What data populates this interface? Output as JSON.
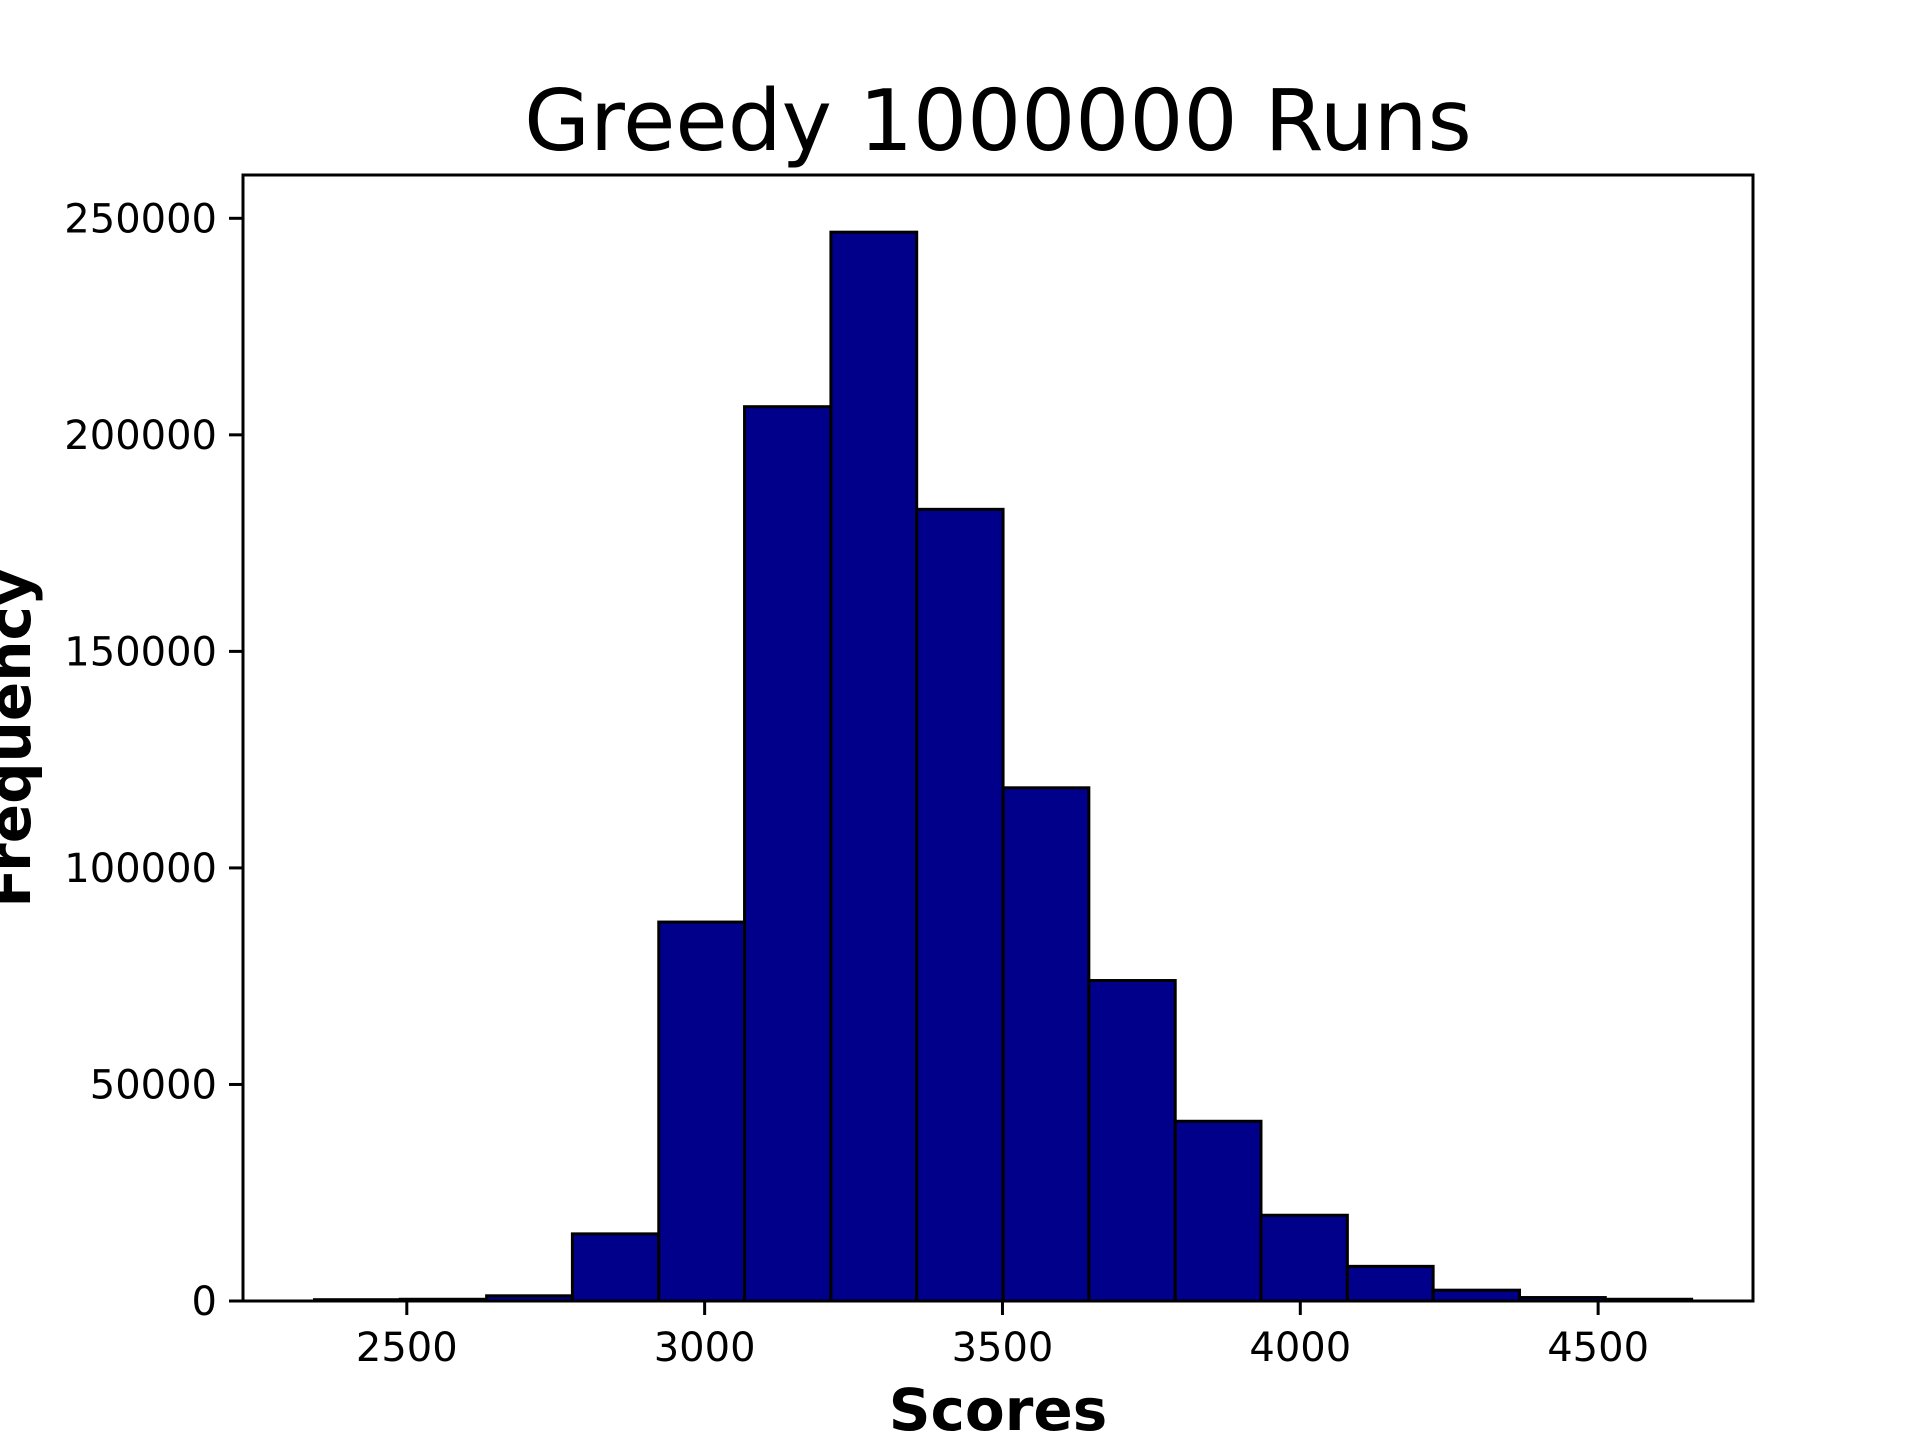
{
  "chart_data": {
    "type": "bar",
    "title": "Greedy 1000000 Runs",
    "xlabel": "Scores",
    "ylabel": "Frequency",
    "xlim": [
      2225,
      4760
    ],
    "ylim": [
      0,
      260000
    ],
    "x_ticks": [
      2500,
      3000,
      3500,
      4000,
      4500
    ],
    "y_ticks": [
      0,
      50000,
      100000,
      150000,
      200000,
      250000
    ],
    "bin_edges": [
      2345,
      2489,
      2634,
      2778,
      2923,
      3067,
      3212,
      3356,
      3501,
      3645,
      3790,
      3934,
      4079,
      4223,
      4368,
      4512,
      4657
    ],
    "values": [
      300,
      400,
      1200,
      15500,
      87500,
      206500,
      246800,
      182800,
      118500,
      74000,
      41500,
      19800,
      8000,
      2500,
      800,
      400
    ],
    "bar_color": "#00008b",
    "edge_color": "#000000",
    "grid": false,
    "legend": "none"
  }
}
